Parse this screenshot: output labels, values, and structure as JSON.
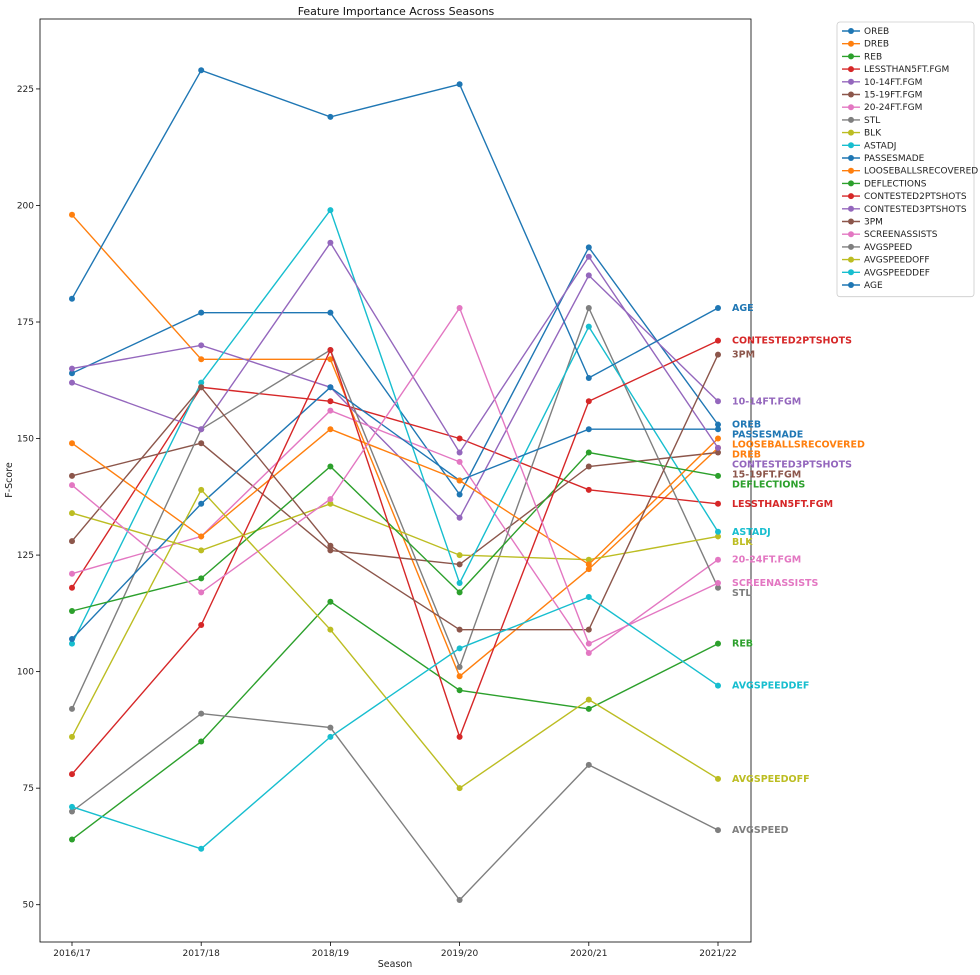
{
  "chart_data": {
    "type": "line",
    "title": "Feature Importance Across Seasons",
    "xlabel": "Season",
    "ylabel": "F-Score",
    "categories": [
      "2016/17",
      "2017/18",
      "2018/19",
      "2019/20",
      "2020/21",
      "2021/22"
    ],
    "ylim": [
      42,
      240
    ],
    "yticks": [
      50,
      75,
      100,
      125,
      150,
      175,
      200,
      225
    ],
    "grid": false,
    "legend_position": "outside-top-right",
    "series": [
      {
        "name": "OREB",
        "color": "#1f77b4",
        "values": [
          164,
          177,
          177,
          138,
          191,
          153
        ]
      },
      {
        "name": "DREB",
        "color": "#ff7f0e",
        "values": [
          198,
          167,
          167,
          99,
          122,
          148
        ]
      },
      {
        "name": "REB",
        "color": "#2ca02c",
        "values": [
          64,
          85,
          115,
          96,
          92,
          106
        ]
      },
      {
        "name": "LESSTHAN5FT.FGM",
        "color": "#d62728",
        "values": [
          118,
          161,
          158,
          150,
          139,
          136
        ]
      },
      {
        "name": "10-14FT.FGM",
        "color": "#9467bd",
        "values": [
          165,
          170,
          161,
          133,
          185,
          158
        ]
      },
      {
        "name": "15-19FT.FGM",
        "color": "#8c564b",
        "values": [
          142,
          149,
          126,
          123,
          144,
          147
        ]
      },
      {
        "name": "20-24FT.FGM",
        "color": "#e377c2",
        "values": [
          121,
          129,
          156,
          145,
          104,
          124
        ]
      },
      {
        "name": "STL",
        "color": "#7f7f7f",
        "values": [
          92,
          152,
          169,
          101,
          178,
          118
        ]
      },
      {
        "name": "BLK",
        "color": "#bcbd22",
        "values": [
          134,
          126,
          136,
          125,
          124,
          129
        ]
      },
      {
        "name": "ASTADJ",
        "color": "#17becf",
        "values": [
          106,
          162,
          199,
          119,
          174,
          130
        ]
      },
      {
        "name": "PASSESMADE",
        "color": "#1f77b4",
        "values": [
          107,
          136,
          161,
          141,
          152,
          152
        ]
      },
      {
        "name": "LOOSEBALLSRECOVERED",
        "color": "#ff7f0e",
        "values": [
          149,
          129,
          152,
          141,
          123,
          150
        ]
      },
      {
        "name": "DEFLECTIONS",
        "color": "#2ca02c",
        "values": [
          113,
          120,
          144,
          117,
          147,
          142
        ]
      },
      {
        "name": "CONTESTED2PTSHOTS",
        "color": "#d62728",
        "values": [
          78,
          110,
          169,
          86,
          158,
          171
        ]
      },
      {
        "name": "CONTESTED3PTSHOTS",
        "color": "#9467bd",
        "values": [
          162,
          152,
          192,
          147,
          189,
          148
        ]
      },
      {
        "name": "3PM",
        "color": "#8c564b",
        "values": [
          128,
          161,
          127,
          109,
          109,
          168
        ]
      },
      {
        "name": "SCREENASSISTS",
        "color": "#e377c2",
        "values": [
          140,
          117,
          137,
          178,
          106,
          119
        ]
      },
      {
        "name": "AVGSPEED",
        "color": "#7f7f7f",
        "values": [
          70,
          91,
          88,
          51,
          80,
          66
        ]
      },
      {
        "name": "AVGSPEEDOFF",
        "color": "#bcbd22",
        "values": [
          86,
          139,
          109,
          75,
          94,
          77
        ]
      },
      {
        "name": "AVGSPEEDDEF",
        "color": "#17becf",
        "values": [
          71,
          62,
          86,
          105,
          116,
          97
        ]
      },
      {
        "name": "AGE",
        "color": "#1f77b4",
        "values": [
          180,
          229,
          219,
          226,
          163,
          178
        ]
      }
    ]
  }
}
